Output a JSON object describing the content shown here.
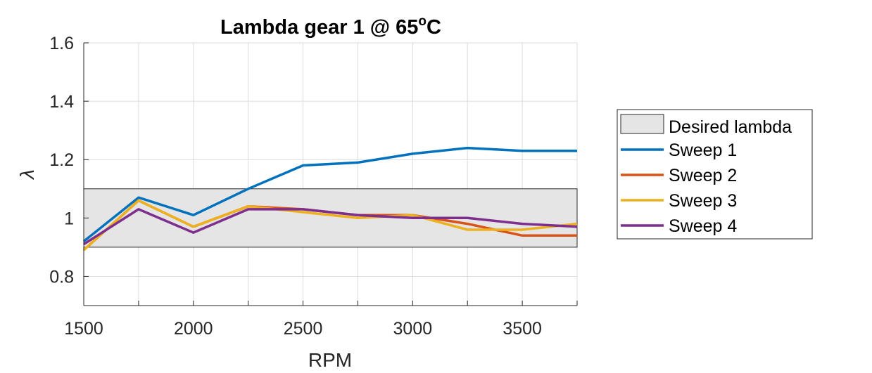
{
  "chart_data": {
    "type": "line",
    "title_main": "Lambda gear 1 @ 65",
    "title_sup": "o",
    "title_end": "C",
    "xlabel": "RPM",
    "ylabel": "λ",
    "xlim": [
      1500,
      3750
    ],
    "ylim": [
      0.7,
      1.6
    ],
    "xticks": [
      1500,
      1750,
      2000,
      2250,
      2500,
      2750,
      3000,
      3250,
      3500,
      3750
    ],
    "xtick_labels": [
      "1500",
      "",
      "2000",
      "",
      "2500",
      "",
      "3000",
      "",
      "3500",
      ""
    ],
    "yticks": [
      0.8,
      1.0,
      1.2,
      1.4,
      1.6
    ],
    "ytick_labels": [
      "0.8",
      "1",
      "1.2",
      "1.4",
      "1.6"
    ],
    "grid": true,
    "legend_position": "right, outside plot",
    "band": {
      "name": "Desired lambda",
      "y_low": 0.9,
      "y_high": 1.1,
      "color": "#e5e5e5"
    },
    "x": [
      1500,
      1750,
      2000,
      2250,
      2500,
      2750,
      3000,
      3250,
      3500,
      3750
    ],
    "series": [
      {
        "name": "Sweep 1",
        "color": "#0072bd",
        "values": [
          0.92,
          1.07,
          1.01,
          1.1,
          1.18,
          1.19,
          1.22,
          1.24,
          1.23,
          1.23
        ]
      },
      {
        "name": "Sweep 2",
        "color": "#d95319",
        "values": [
          0.89,
          1.06,
          0.97,
          1.04,
          1.03,
          1.01,
          1.01,
          0.98,
          0.94,
          0.94
        ]
      },
      {
        "name": "Sweep 3",
        "color": "#edb120",
        "values": [
          0.89,
          1.06,
          0.97,
          1.04,
          1.02,
          1.0,
          1.01,
          0.96,
          0.96,
          0.98
        ]
      },
      {
        "name": "Sweep 4",
        "color": "#7e2f8e",
        "values": [
          0.91,
          1.03,
          0.95,
          1.03,
          1.03,
          1.01,
          1.0,
          1.0,
          0.98,
          0.97
        ]
      }
    ]
  }
}
